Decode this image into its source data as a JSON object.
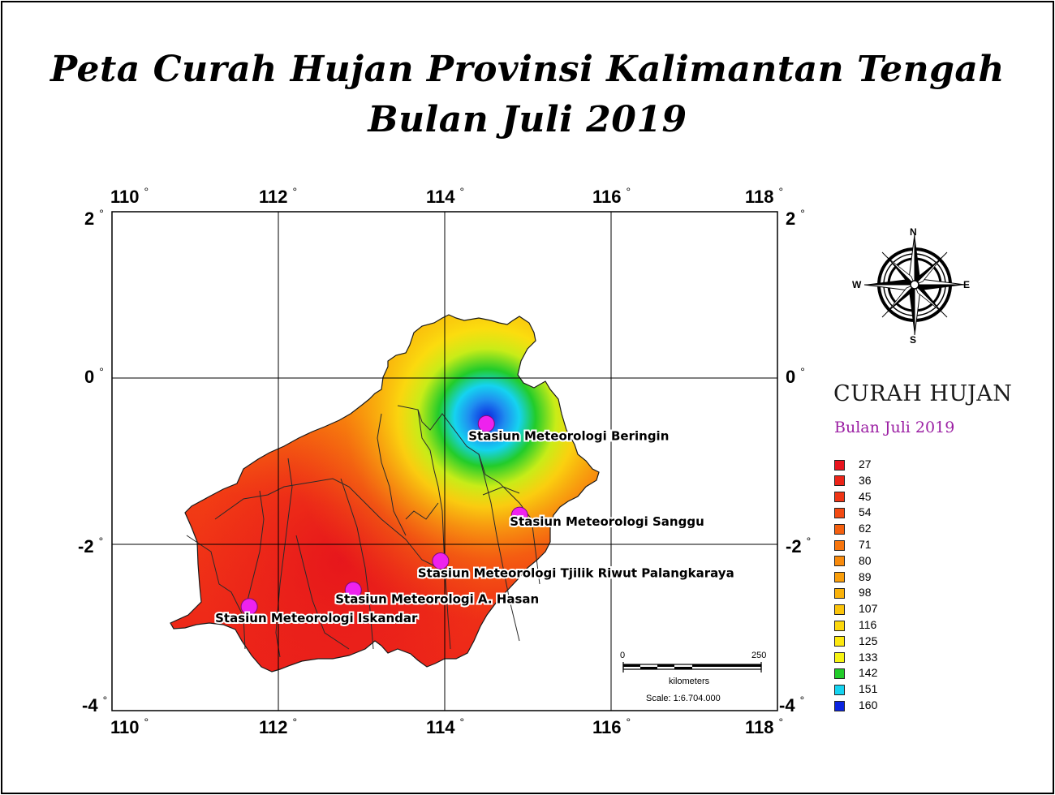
{
  "title": {
    "line1": "Peta Curah Hujan Provinsi Kalimantan Tengah",
    "line2": "Bulan Juli 2019"
  },
  "axes": {
    "top": [
      "110",
      "112",
      "114",
      "116",
      "118"
    ],
    "bottom": [
      "110",
      "112",
      "114",
      "116",
      "118"
    ],
    "left": [
      "2",
      "0",
      "-2",
      "-4"
    ],
    "right": [
      "2",
      "0",
      "-2",
      "-4"
    ],
    "degree_symbol": "°"
  },
  "stations": [
    {
      "name": "Stasiun Meteorologi Beringin",
      "lon": 114.5,
      "lat": -0.55
    },
    {
      "name": "Stasiun Meteorologi Sanggu",
      "lon": 114.9,
      "lat": -1.65
    },
    {
      "name": "Stasiun Meteorologi  Tjilik Riwut Palangkaraya",
      "lon": 113.95,
      "lat": -2.2
    },
    {
      "name": "Stasiun Meteorologi A. Hasan",
      "lon": 112.9,
      "lat": -2.55
    },
    {
      "name": "Stasiun Meteorologi Iskandar",
      "lon": 111.65,
      "lat": -2.75
    }
  ],
  "legend": {
    "title": "CURAH HUJAN",
    "subtitle": "Bulan Juli 2019",
    "items": [
      {
        "value": "27",
        "color": "#e8141e"
      },
      {
        "value": "36",
        "color": "#ec2418"
      },
      {
        "value": "45",
        "color": "#ef3515"
      },
      {
        "value": "54",
        "color": "#f24a12"
      },
      {
        "value": "62",
        "color": "#f5600f"
      },
      {
        "value": "71",
        "color": "#f7750d"
      },
      {
        "value": "80",
        "color": "#f88a0c"
      },
      {
        "value": "89",
        "color": "#f99e0b"
      },
      {
        "value": "98",
        "color": "#fab20a"
      },
      {
        "value": "107",
        "color": "#fbc40b"
      },
      {
        "value": "116",
        "color": "#fcd70d"
      },
      {
        "value": "125",
        "color": "#fde80f"
      },
      {
        "value": "133",
        "color": "#f6f313"
      },
      {
        "value": "142",
        "color": "#22cc2a"
      },
      {
        "value": "151",
        "color": "#15d3f0"
      },
      {
        "value": "160",
        "color": "#0b24e0"
      }
    ]
  },
  "compass": {
    "n": "N",
    "s": "S",
    "e": "E",
    "w": "W"
  },
  "scale_bar": {
    "start": "0",
    "end": "250",
    "unit": "kilometers",
    "scale": "Scale: 1:6.704.000"
  }
}
